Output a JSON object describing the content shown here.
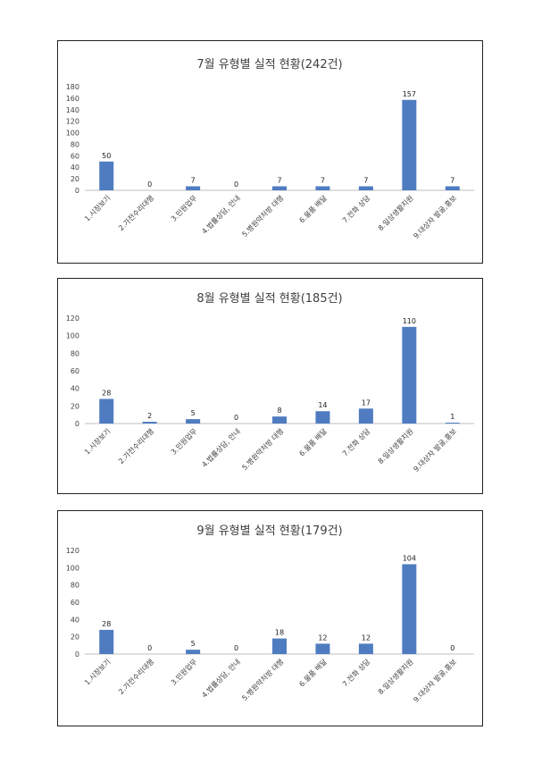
{
  "colors": {
    "bar": "#4f7cc1",
    "axis": "#bfbfbf",
    "border": "#222222"
  },
  "chart_data": [
    {
      "type": "bar",
      "title": "7월 유형별 실적 현황(242건)",
      "categories": [
        "1.시장보기",
        "2.가전수리대행",
        "3.민원업무",
        "4.법률상담, 안내",
        "5.병원약처방 대행",
        "6.물품 배달",
        "7.전화 상담",
        "8.일상생활지원",
        "9.대상자 발굴,홍보"
      ],
      "values": [
        50,
        0,
        7,
        0,
        7,
        7,
        7,
        157,
        7
      ],
      "ylim": [
        0,
        180
      ],
      "yticks": [
        "0",
        "20",
        "40",
        "60",
        "80",
        "100",
        "120",
        "140",
        "160",
        "180"
      ],
      "data_labels": [
        "50",
        "0",
        "7",
        "0",
        "7",
        "7",
        "7",
        "157",
        "7"
      ],
      "xlabel": "",
      "ylabel": "",
      "legend": "none",
      "grid": false
    },
    {
      "type": "bar",
      "title": "8월 유형별 실적 현황(185건)",
      "categories": [
        "1.시장보기",
        "2.가전수리대행",
        "3.민원업무",
        "4.법률상담, 안내",
        "5.병원약처방 대행",
        "6.물품 배달",
        "7.전화 상담",
        "8.일상생활지원",
        "9.대상자 발굴,홍보"
      ],
      "values": [
        28,
        2,
        5,
        0,
        8,
        14,
        17,
        110,
        1
      ],
      "ylim": [
        0,
        120
      ],
      "yticks": [
        "0",
        "20",
        "40",
        "60",
        "80",
        "100",
        "120"
      ],
      "data_labels": [
        "28",
        "2",
        "5",
        "0",
        "8",
        "14",
        "17",
        "110",
        "1"
      ],
      "xlabel": "",
      "ylabel": "",
      "legend": "none",
      "grid": false
    },
    {
      "type": "bar",
      "title": "9월 유형별 실적 현황(179건)",
      "categories": [
        "1.시장보기",
        "2.가전수리대행",
        "3.민원업무",
        "4.법률상담, 안내",
        "5.병원약처방 대행",
        "6.물품 배달",
        "7.전화 상담",
        "8.일상생활지원",
        "9.대상자 발굴,홍보"
      ],
      "values": [
        28,
        0,
        5,
        0,
        18,
        12,
        12,
        104,
        0
      ],
      "ylim": [
        0,
        120
      ],
      "yticks": [
        "0",
        "20",
        "40",
        "60",
        "80",
        "100",
        "120"
      ],
      "data_labels": [
        "28",
        "0",
        "5",
        "0",
        "18",
        "12",
        "12",
        "104",
        "0"
      ],
      "xlabel": "",
      "ylabel": "",
      "legend": "none",
      "grid": false
    }
  ]
}
